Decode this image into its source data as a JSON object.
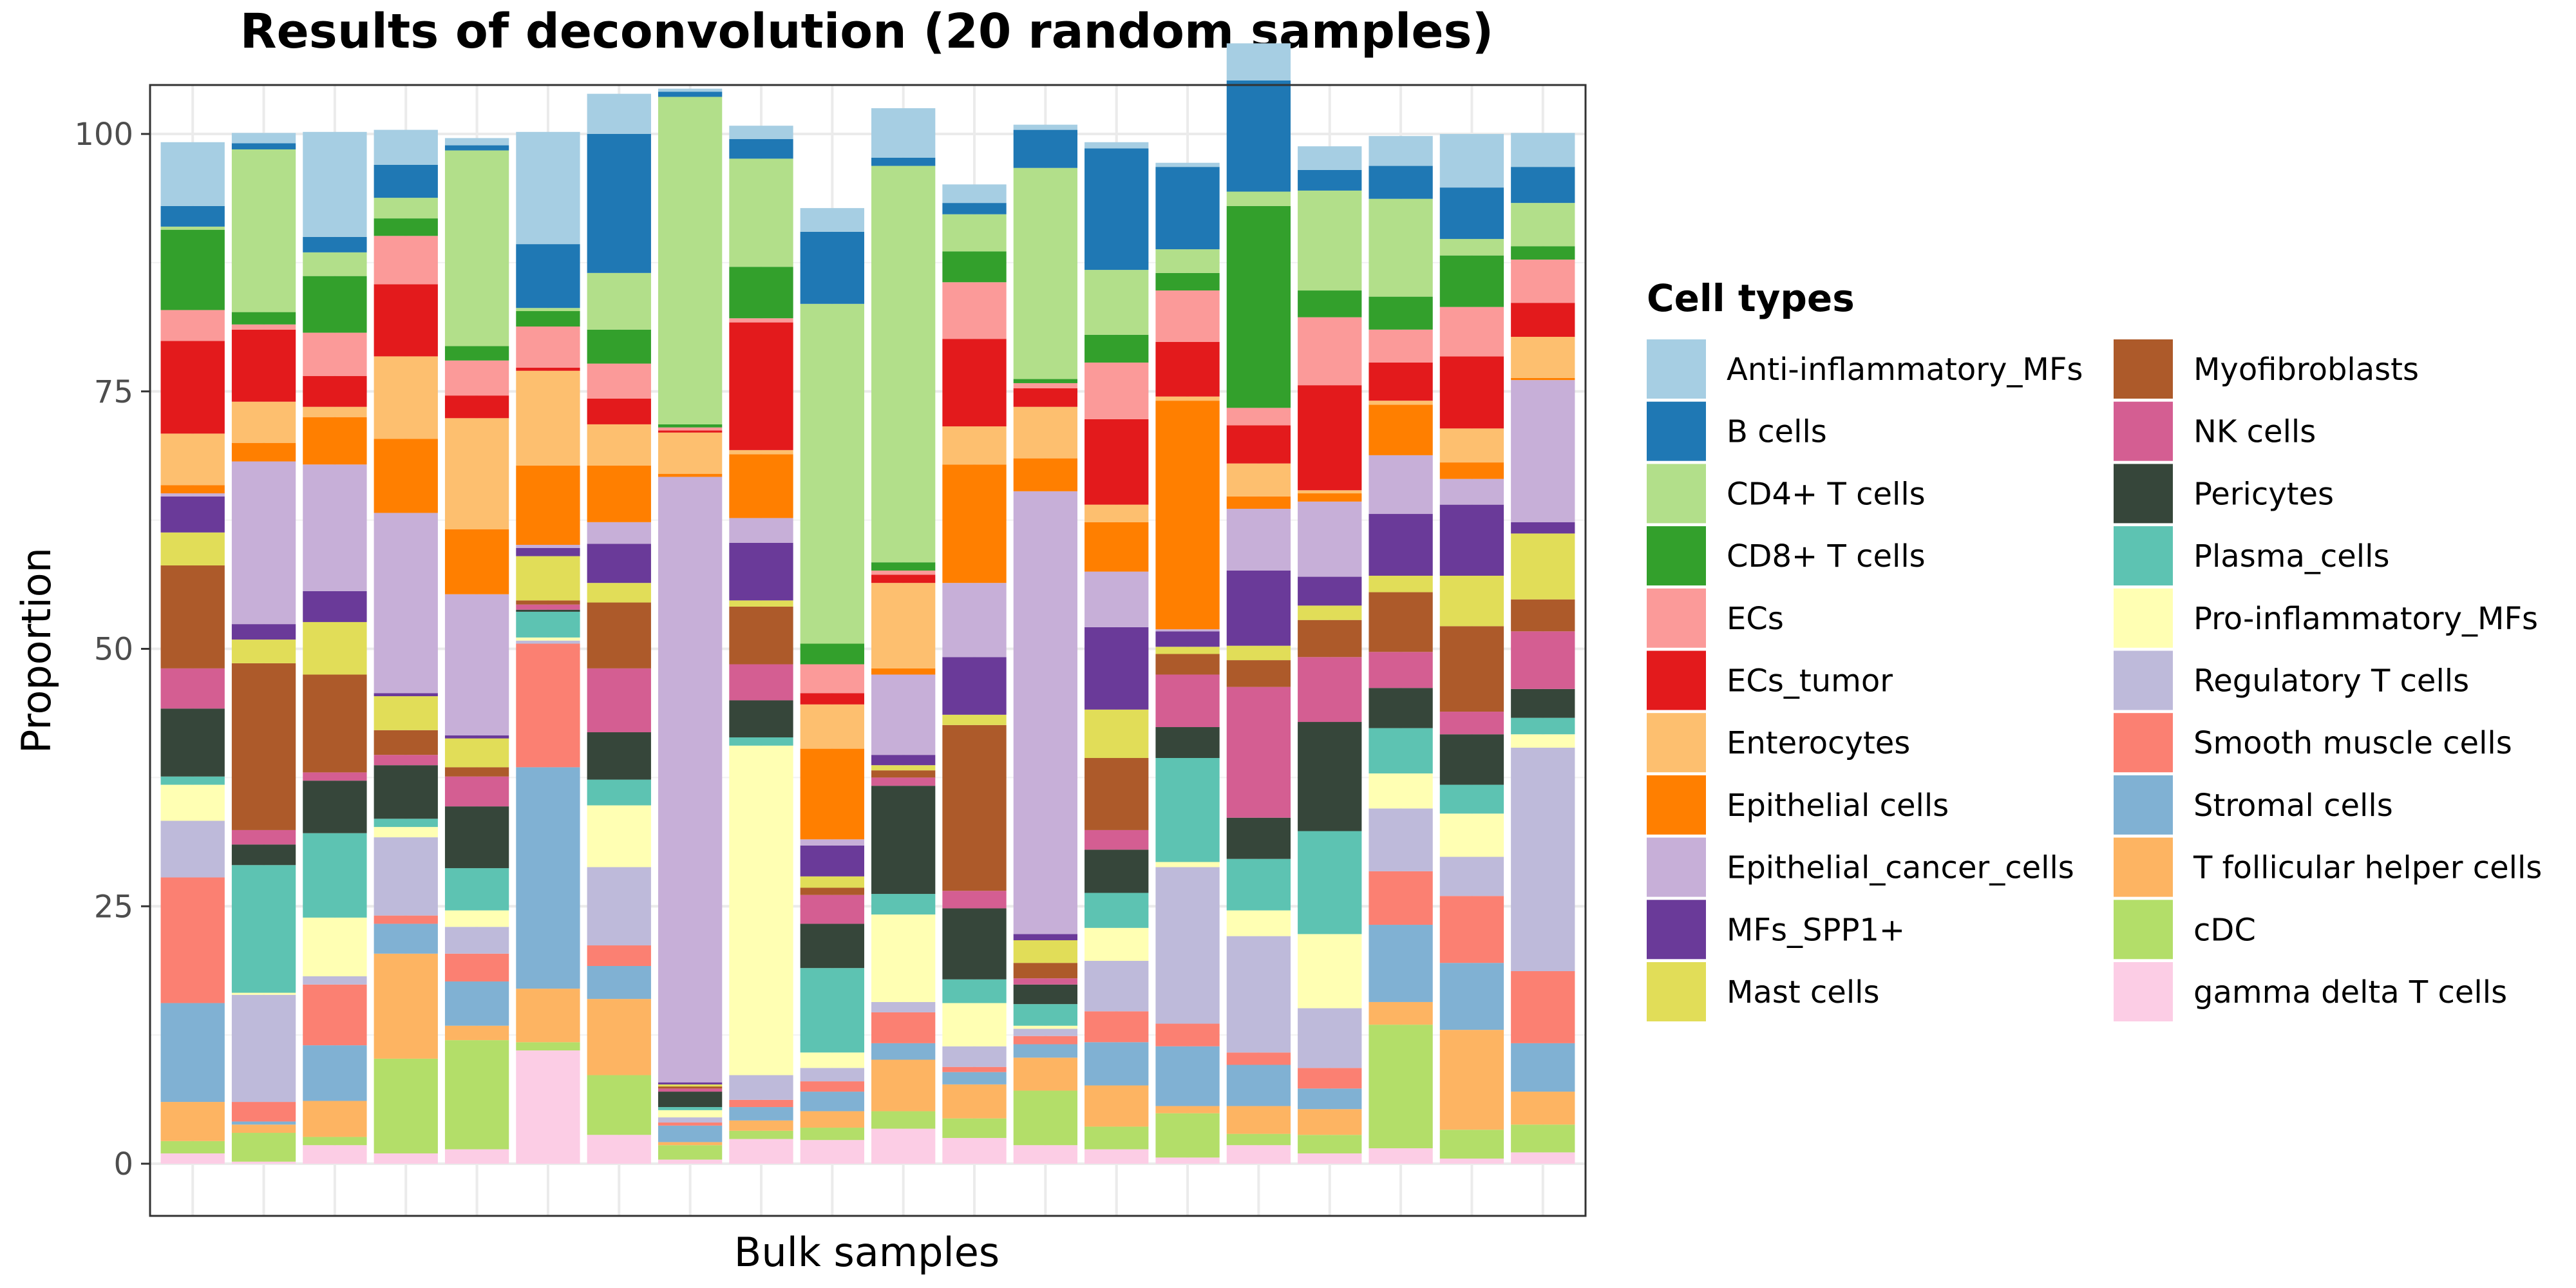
{
  "chart_data": {
    "type": "bar",
    "stacked": true,
    "title": "Results of deconvolution (20 random samples)",
    "xlabel": "Bulk samples",
    "ylabel": "Proportion",
    "ylim": [
      0,
      100
    ],
    "yticks": [
      0,
      25,
      50,
      75,
      100
    ],
    "grid": true,
    "legend_title": "Cell types",
    "legend_position": "right",
    "categories": [
      "",
      "",
      "",
      "",
      "",
      "",
      "",
      "",
      "",
      "",
      "",
      "",
      "",
      "",
      "",
      "",
      "",
      "",
      "",
      ""
    ],
    "series": [
      {
        "name": "gamma delta T cells",
        "color": "#FCCDE5",
        "values": [
          1.0,
          0.2,
          1.8,
          1.0,
          1.4,
          11.0,
          2.8,
          0.4,
          2.4,
          2.3,
          3.4,
          2.5,
          1.8,
          1.4,
          0.6,
          1.8,
          1.0,
          1.5,
          0.5,
          1.1
        ]
      },
      {
        "name": "cDC",
        "color": "#B3DE69",
        "values": [
          1.2,
          2.8,
          0.8,
          9.2,
          10.6,
          0.8,
          5.8,
          1.4,
          0.8,
          1.2,
          1.7,
          1.9,
          5.3,
          2.2,
          4.3,
          1.1,
          1.8,
          12.0,
          2.8,
          2.7
        ]
      },
      {
        "name": "T follicular helper cells",
        "color": "#FDB462",
        "values": [
          3.8,
          0.8,
          3.5,
          10.2,
          1.4,
          5.2,
          7.4,
          0.3,
          1.0,
          1.6,
          5.0,
          3.3,
          3.2,
          4.0,
          0.7,
          2.7,
          2.5,
          2.2,
          9.7,
          3.2
        ]
      },
      {
        "name": "Stromal cells",
        "color": "#80B1D3",
        "values": [
          9.6,
          0.3,
          5.4,
          2.9,
          4.3,
          21.5,
          3.2,
          1.6,
          1.3,
          1.9,
          1.6,
          1.2,
          1.3,
          4.2,
          5.8,
          4.0,
          2.0,
          7.5,
          6.5,
          4.7
        ]
      },
      {
        "name": "Smooth muscle cells",
        "color": "#FB8072",
        "values": [
          12.2,
          1.9,
          5.9,
          0.8,
          2.7,
          12.0,
          2.0,
          0.3,
          0.7,
          1.0,
          3.0,
          0.5,
          0.8,
          3.0,
          2.2,
          1.2,
          2.0,
          5.2,
          6.5,
          7.0
        ]
      },
      {
        "name": "Regulatory T cells",
        "color": "#BEBADA",
        "values": [
          5.5,
          10.4,
          0.8,
          7.6,
          2.6,
          0.3,
          7.6,
          0.5,
          2.4,
          1.3,
          1.0,
          2.0,
          0.7,
          4.9,
          15.2,
          11.3,
          5.8,
          6.1,
          3.8,
          21.7
        ]
      },
      {
        "name": "Pro-inflammatory_MFs",
        "color": "#FFFFB3",
        "values": [
          3.5,
          0.2,
          5.7,
          1.0,
          1.6,
          0.3,
          6.0,
          0.7,
          32.0,
          1.5,
          8.5,
          4.2,
          0.3,
          3.2,
          0.5,
          2.5,
          7.2,
          3.4,
          4.2,
          1.3
        ]
      },
      {
        "name": "Plasma_cells",
        "color": "#5DC3B2",
        "values": [
          0.8,
          12.4,
          8.2,
          0.8,
          4.1,
          2.5,
          2.5,
          0.3,
          0.8,
          8.2,
          2.0,
          2.3,
          2.1,
          3.4,
          10.1,
          5.0,
          10.0,
          4.4,
          2.8,
          1.6
        ]
      },
      {
        "name": "Pericytes",
        "color": "#36463A",
        "values": [
          6.6,
          2.0,
          5.1,
          5.2,
          6.0,
          0.2,
          4.6,
          1.5,
          3.6,
          4.3,
          10.5,
          6.9,
          1.9,
          4.2,
          3.0,
          4.0,
          10.6,
          3.9,
          4.9,
          2.8
        ]
      },
      {
        "name": "NK cells",
        "color": "#D45E92",
        "values": [
          3.9,
          1.4,
          0.8,
          1.0,
          2.9,
          0.5,
          6.2,
          0.3,
          3.5,
          2.8,
          0.8,
          1.7,
          0.6,
          1.9,
          5.1,
          12.7,
          6.3,
          3.5,
          2.2,
          5.6
        ]
      },
      {
        "name": "Myofibroblasts",
        "color": "#AD5A2A",
        "values": [
          10.0,
          16.2,
          9.5,
          2.4,
          0.9,
          0.4,
          6.4,
          0.2,
          5.6,
          0.7,
          0.7,
          16.1,
          1.5,
          7.0,
          2.0,
          2.6,
          3.6,
          5.8,
          8.3,
          3.1
        ]
      },
      {
        "name": "Mast cells",
        "color": "#E1DD58",
        "values": [
          3.2,
          2.3,
          5.1,
          3.3,
          2.8,
          4.3,
          1.9,
          0.2,
          0.6,
          1.1,
          0.5,
          1.0,
          2.2,
          4.7,
          0.7,
          1.4,
          1.4,
          1.6,
          4.9,
          6.4
        ]
      },
      {
        "name": "MFs_SPP1+",
        "color": "#6A3A99",
        "values": [
          3.5,
          1.5,
          3.0,
          0.3,
          0.3,
          0.8,
          3.8,
          0.2,
          5.6,
          3.0,
          1.0,
          5.6,
          0.6,
          8.0,
          1.5,
          7.3,
          2.8,
          6.0,
          6.9,
          1.1
        ]
      },
      {
        "name": "Epithelial_cancer_cells",
        "color": "#C7AFD8",
        "values": [
          0.3,
          15.8,
          12.3,
          17.5,
          13.7,
          0.3,
          2.1,
          58.8,
          2.4,
          0.6,
          7.8,
          7.2,
          43.0,
          5.4,
          0.2,
          6.0,
          7.3,
          5.7,
          2.5,
          13.8
        ]
      },
      {
        "name": "Epithelial cells",
        "color": "#FF7F00",
        "values": [
          0.8,
          1.8,
          4.6,
          7.2,
          6.3,
          7.7,
          5.5,
          0.3,
          6.2,
          8.8,
          0.6,
          11.5,
          3.2,
          4.8,
          22.2,
          1.2,
          0.8,
          4.9,
          1.6,
          0.2
        ]
      },
      {
        "name": "Enterocytes",
        "color": "#FDBF6F",
        "values": [
          5.0,
          4.0,
          1.0,
          8.0,
          10.8,
          9.2,
          4.0,
          4.0,
          0.4,
          4.3,
          8.3,
          3.7,
          5.0,
          1.7,
          0.4,
          3.2,
          0.3,
          0.4,
          3.3,
          4.0
        ]
      },
      {
        "name": "ECs_tumor",
        "color": "#E31A1C",
        "values": [
          9.0,
          7.0,
          3.0,
          7.0,
          2.2,
          0.3,
          2.5,
          0.2,
          12.4,
          1.1,
          0.8,
          8.5,
          1.8,
          8.3,
          5.3,
          3.7,
          10.2,
          3.7,
          7.0,
          3.3
        ]
      },
      {
        "name": "ECs",
        "color": "#FB9A99",
        "values": [
          3.0,
          0.5,
          4.2,
          4.7,
          3.4,
          4.0,
          3.4,
          0.3,
          0.4,
          2.8,
          0.4,
          5.5,
          0.5,
          5.5,
          5.0,
          1.7,
          6.6,
          3.2,
          4.8,
          4.2
        ]
      },
      {
        "name": "CD8+ T cells",
        "color": "#33A02C",
        "values": [
          7.8,
          1.2,
          5.5,
          1.7,
          1.4,
          1.5,
          3.3,
          0.3,
          5.0,
          2.0,
          0.8,
          3.0,
          0.4,
          2.7,
          1.7,
          19.6,
          2.6,
          3.2,
          5.0,
          1.3
        ]
      },
      {
        "name": "CD4+ T cells",
        "color": "#B2DF8A",
        "values": [
          0.3,
          15.8,
          2.3,
          2.0,
          19.0,
          0.3,
          5.5,
          31.8,
          10.5,
          33.0,
          38.5,
          3.6,
          20.5,
          6.3,
          2.3,
          1.4,
          9.7,
          9.5,
          1.6,
          4.2
        ]
      },
      {
        "name": "B cells",
        "color": "#1F78B4",
        "values": [
          2.0,
          0.6,
          1.5,
          3.2,
          0.5,
          6.2,
          13.5,
          0.5,
          1.9,
          7.0,
          0.8,
          1.1,
          3.7,
          11.8,
          8.0,
          10.8,
          2.0,
          3.2,
          5.0,
          3.5
        ]
      },
      {
        "name": "Anti-inflammatory_MFs",
        "color": "#A6CEE3",
        "values": [
          6.2,
          1.0,
          10.2,
          3.4,
          0.7,
          10.9,
          3.9,
          0.3,
          1.3,
          2.3,
          4.8,
          1.8,
          0.5,
          0.6,
          0.4,
          3.6,
          2.3,
          2.9,
          5.2,
          3.3
        ]
      }
    ]
  },
  "legend_columns": [
    [
      "Anti-inflammatory_MFs",
      "B cells",
      "CD4+ T cells",
      "CD8+ T cells",
      "ECs",
      "ECs_tumor",
      "Enterocytes",
      "Epithelial cells",
      "Epithelial_cancer_cells",
      "MFs_SPP1+",
      "Mast cells"
    ],
    [
      "Myofibroblasts",
      "NK cells",
      "Pericytes",
      "Plasma_cells",
      "Pro-inflammatory_MFs",
      "Regulatory T cells",
      "Smooth muscle cells",
      "Stromal cells",
      "T follicular helper cells",
      "cDC",
      "gamma delta T cells"
    ]
  ]
}
